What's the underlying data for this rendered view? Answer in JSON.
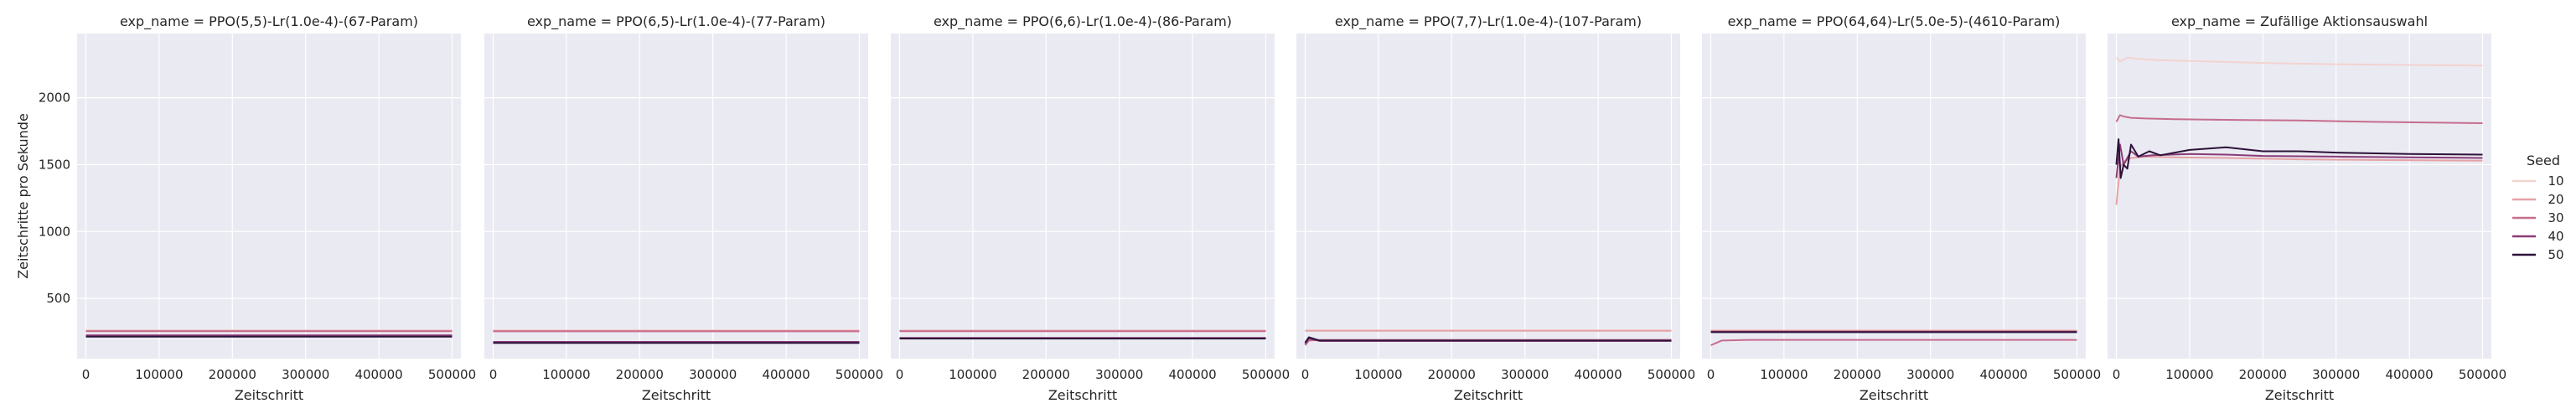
{
  "chart_data": {
    "type": "line",
    "facet_label_prefix": "exp_name = ",
    "xlabel": "Zeitschritt",
    "ylabel": "Zeitschritte pro Sekunde",
    "xlim": [
      -12000,
      512000
    ],
    "ylim": [
      50,
      2480
    ],
    "xticks": [
      0,
      100000,
      200000,
      300000,
      400000,
      500000
    ],
    "xtick_labels": [
      "0",
      "100000",
      "200000",
      "300000",
      "400000",
      "500000"
    ],
    "yticks": [
      500,
      1000,
      1500,
      2000
    ],
    "ytick_labels": [
      "500",
      "1000",
      "1500",
      "2000"
    ],
    "grid": true,
    "legend": {
      "title": "Seed",
      "placement": "right",
      "entries": [
        {
          "name": "10",
          "color": "#f2d3cf"
        },
        {
          "name": "20",
          "color": "#e5a2a5"
        },
        {
          "name": "30",
          "color": "#c66d8e"
        },
        {
          "name": "40",
          "color": "#8a3b78"
        },
        {
          "name": "50",
          "color": "#2d1239"
        }
      ]
    },
    "panels": [
      {
        "title": "PPO(5,5)-Lr(1.0e-4)-(67-Param)",
        "series": [
          {
            "name": "10",
            "x": [
              0,
              500000
            ],
            "y": [
              262,
              262
            ]
          },
          {
            "name": "20",
            "x": [
              0,
              500000
            ],
            "y": [
              258,
              258
            ]
          },
          {
            "name": "30",
            "x": [
              0,
              500000
            ],
            "y": [
              255,
              255
            ]
          },
          {
            "name": "40",
            "x": [
              0,
              500000
            ],
            "y": [
              225,
              225
            ]
          },
          {
            "name": "50",
            "x": [
              0,
              500000
            ],
            "y": [
              215,
              215
            ]
          }
        ]
      },
      {
        "title": "PPO(6,5)-Lr(1.0e-4)-(77-Param)",
        "series": [
          {
            "name": "10",
            "x": [
              0,
              500000
            ],
            "y": [
              262,
              262
            ]
          },
          {
            "name": "20",
            "x": [
              0,
              500000
            ],
            "y": [
              258,
              258
            ]
          },
          {
            "name": "30",
            "x": [
              0,
              500000
            ],
            "y": [
              254,
              254
            ]
          },
          {
            "name": "40",
            "x": [
              0,
              500000
            ],
            "y": [
              175,
              175
            ]
          },
          {
            "name": "50",
            "x": [
              0,
              500000
            ],
            "y": [
              168,
              168
            ]
          }
        ]
      },
      {
        "title": "PPO(6,6)-Lr(1.0e-4)-(86-Param)",
        "series": [
          {
            "name": "10",
            "x": [
              0,
              500000
            ],
            "y": [
              262,
              262
            ]
          },
          {
            "name": "20",
            "x": [
              0,
              500000
            ],
            "y": [
              258,
              258
            ]
          },
          {
            "name": "30",
            "x": [
              0,
              500000
            ],
            "y": [
              255,
              255
            ]
          },
          {
            "name": "40",
            "x": [
              0,
              500000
            ],
            "y": [
              205,
              205
            ]
          },
          {
            "name": "50",
            "x": [
              0,
              500000
            ],
            "y": [
              200,
              200
            ]
          }
        ]
      },
      {
        "title": "PPO(7,7)-Lr(1.0e-4)-(107-Param)",
        "series": [
          {
            "name": "10",
            "x": [
              0,
              500000
            ],
            "y": [
              262,
              262
            ]
          },
          {
            "name": "20",
            "x": [
              0,
              500000
            ],
            "y": [
              258,
              258
            ]
          },
          {
            "name": "30",
            "x": [
              0,
              5000,
              20000,
              500000
            ],
            "y": [
              150,
              185,
              190,
              190
            ]
          },
          {
            "name": "40",
            "x": [
              0,
              5000,
              20000,
              500000
            ],
            "y": [
              160,
              200,
              182,
              182
            ]
          },
          {
            "name": "50",
            "x": [
              0,
              5000,
              20000,
              500000
            ],
            "y": [
              170,
              210,
              185,
              185
            ]
          }
        ]
      },
      {
        "title": "PPO(64,64)-Lr(5.0e-5)-(4610-Param)",
        "series": [
          {
            "name": "10",
            "x": [
              0,
              500000
            ],
            "y": [
              262,
              262
            ]
          },
          {
            "name": "20",
            "x": [
              0,
              500000
            ],
            "y": [
              258,
              258
            ]
          },
          {
            "name": "30",
            "x": [
              0,
              15000,
              50000,
              500000
            ],
            "y": [
              150,
              185,
              190,
              190
            ]
          },
          {
            "name": "40",
            "x": [
              0,
              500000
            ],
            "y": [
              252,
              252
            ]
          },
          {
            "name": "50",
            "x": [
              0,
              500000
            ],
            "y": [
              248,
              248
            ]
          }
        ]
      },
      {
        "title": "Zufällige Aktionsauswahl",
        "series": [
          {
            "name": "10",
            "x": [
              0,
              5000,
              15000,
              30000,
              60000,
              100000,
              200000,
              300000,
              400000,
              500000
            ],
            "y": [
              2300,
              2270,
              2300,
              2290,
              2280,
              2275,
              2260,
              2250,
              2245,
              2240
            ]
          },
          {
            "name": "20",
            "x": [
              0,
              5000,
              10000,
              20000,
              40000,
              80000,
              150000,
              250000,
              350000,
              500000
            ],
            "y": [
              1200,
              1480,
              1520,
              1550,
              1560,
              1555,
              1550,
              1540,
              1535,
              1530
            ]
          },
          {
            "name": "30",
            "x": [
              0,
              5000,
              10000,
              20000,
              40000,
              80000,
              150000,
              250000,
              350000,
              500000
            ],
            "y": [
              1820,
              1870,
              1860,
              1850,
              1845,
              1840,
              1835,
              1830,
              1820,
              1810
            ]
          },
          {
            "name": "40",
            "x": [
              0,
              5000,
              10000,
              20000,
              30000,
              50000,
              100000,
              150000,
              200000,
              300000,
              400000,
              500000
            ],
            "y": [
              1400,
              1650,
              1500,
              1600,
              1560,
              1570,
              1580,
              1575,
              1565,
              1560,
              1555,
              1550
            ]
          },
          {
            "name": "50",
            "x": [
              0,
              3000,
              6000,
              10000,
              15000,
              20000,
              30000,
              45000,
              60000,
              80000,
              100000,
              150000,
              200000,
              250000,
              300000,
              400000,
              500000
            ],
            "y": [
              1500,
              1690,
              1400,
              1500,
              1470,
              1650,
              1560,
              1600,
              1570,
              1590,
              1610,
              1630,
              1600,
              1600,
              1590,
              1580,
              1575
            ]
          }
        ]
      }
    ]
  }
}
